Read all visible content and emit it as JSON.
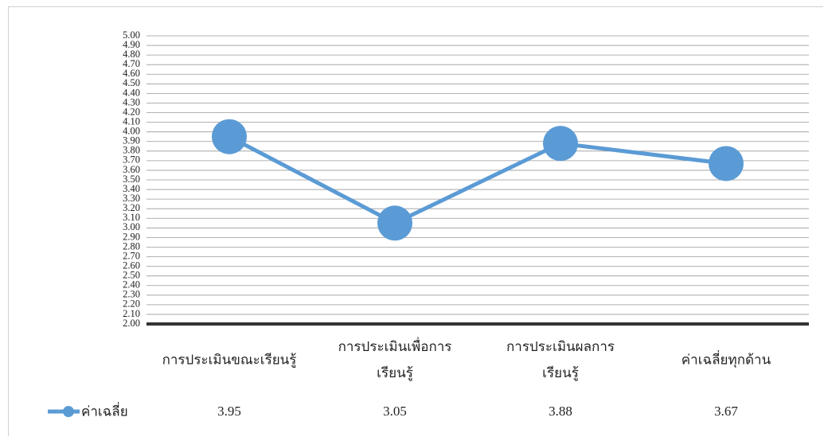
{
  "chart_data": {
    "type": "line",
    "categories": [
      "การประเมินขณะเรียนรู้",
      "การประเมินเพื่อการ\nเรียนรู้",
      "การประเมินผลการ\nเรียนรู้",
      "ค่าเฉลี่ยทุกด้าน"
    ],
    "series": [
      {
        "name": "ค่าเฉลี่ย",
        "color": "#5b9bd5",
        "values": [
          3.95,
          3.05,
          3.88,
          3.67
        ]
      }
    ],
    "ylim": [
      2,
      5
    ],
    "yticks": [
      {
        "value": 2,
        "label": "2.00"
      },
      {
        "value": 2.1,
        "label": "2.10"
      },
      {
        "value": 2.2,
        "label": "2.20"
      },
      {
        "value": 2.3,
        "label": "2.30"
      },
      {
        "value": 2.4,
        "label": "2.40"
      },
      {
        "value": 2.5,
        "label": "2.50"
      },
      {
        "value": 2.6,
        "label": "2.60"
      },
      {
        "value": 2.7,
        "label": "2.70"
      },
      {
        "value": 2.8,
        "label": "2.80"
      },
      {
        "value": 2.9,
        "label": "2.90"
      },
      {
        "value": 3,
        "label": "3.00"
      },
      {
        "value": 3.1,
        "label": "3.10"
      },
      {
        "value": 3.2,
        "label": "3.20"
      },
      {
        "value": 3.3,
        "label": "3.30"
      },
      {
        "value": 3.4,
        "label": "3.40"
      },
      {
        "value": 3.5,
        "label": "3.50"
      },
      {
        "value": 3.6,
        "label": "3.60"
      },
      {
        "value": 3.7,
        "label": "3.70"
      },
      {
        "value": 3.8,
        "label": "3.80"
      },
      {
        "value": 3.9,
        "label": "3.90"
      },
      {
        "value": 4,
        "label": "4.00"
      },
      {
        "value": 4.1,
        "label": "4.10"
      },
      {
        "value": 4.2,
        "label": "4.20"
      },
      {
        "value": 4.3,
        "label": "4.30"
      },
      {
        "value": 4.4,
        "label": "4.40"
      },
      {
        "value": 4.5,
        "label": "4.50"
      },
      {
        "value": 4.6,
        "label": "4.60"
      },
      {
        "value": 4.7,
        "label": "4.70"
      },
      {
        "value": 4.8,
        "label": "4.80"
      },
      {
        "value": 4.9,
        "label": "4.90"
      },
      {
        "value": 5,
        "label": "5.00"
      }
    ],
    "grid": true
  }
}
